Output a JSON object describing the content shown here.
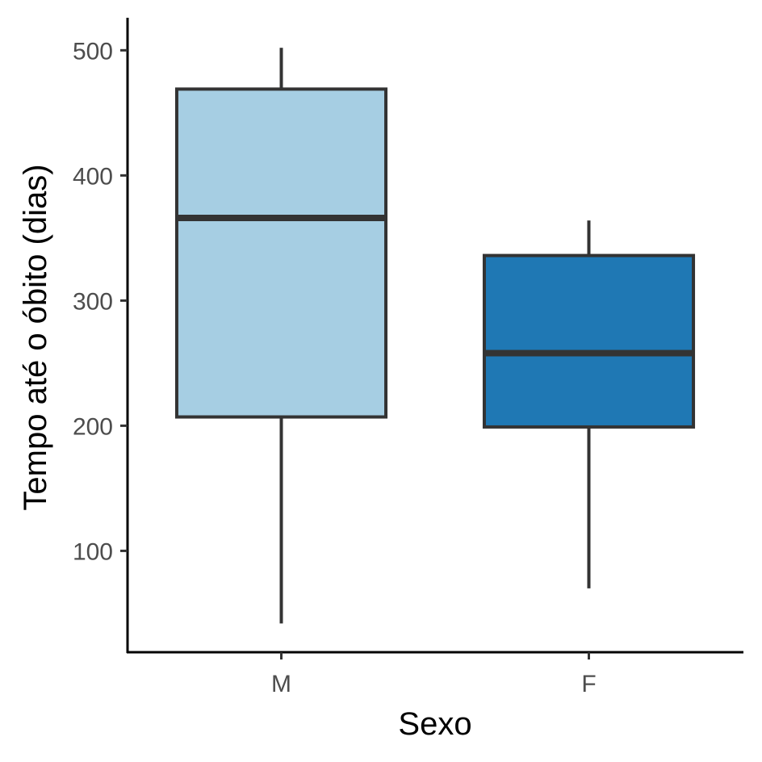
{
  "chart_data": {
    "type": "boxplot",
    "xlabel": "Sexo",
    "ylabel": "Tempo até o óbito (dias)",
    "categories": [
      "M",
      "F"
    ],
    "boxes": [
      {
        "category": "M",
        "whisker_low": 42,
        "q1": 207,
        "median": 366,
        "q3": 469,
        "whisker_high": 502,
        "fill": "#a6cee3"
      },
      {
        "category": "F",
        "whisker_low": 70,
        "q1": 199,
        "median": 258,
        "q3": 336,
        "whisker_high": 364,
        "fill": "#1f78b4"
      }
    ],
    "yticks": [
      100,
      200,
      300,
      400,
      500
    ],
    "ylim": [
      19,
      526
    ],
    "grid": false,
    "legend": "none"
  }
}
